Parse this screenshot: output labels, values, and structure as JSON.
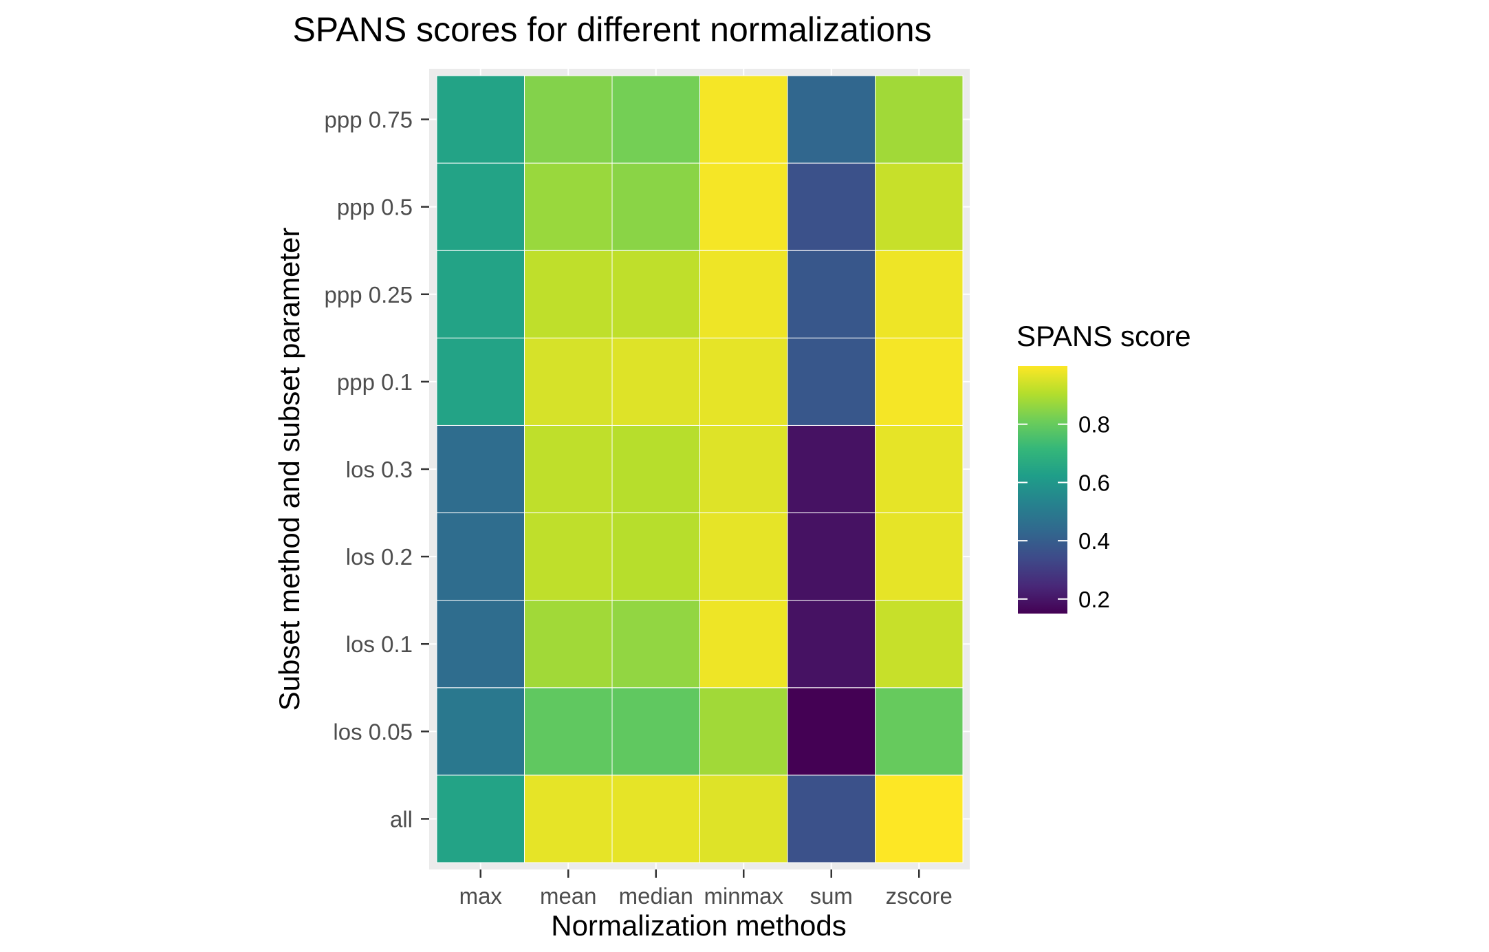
{
  "chart_data": {
    "type": "heatmap",
    "title": "SPANS scores for different normalizations",
    "xlabel": "Normalization methods",
    "ylabel": "Subset method and subset parameter",
    "x_categories": [
      "max",
      "mean",
      "median",
      "minmax",
      "sum",
      "zscore"
    ],
    "y_categories": [
      "all",
      "los 0.05",
      "los 0.1",
      "los 0.2",
      "los 0.3",
      "ppp 0.1",
      "ppp 0.25",
      "ppp 0.5",
      "ppp 0.75"
    ],
    "values": [
      [
        0.64,
        0.97,
        0.97,
        0.96,
        0.36,
        1.0
      ],
      [
        0.49,
        0.79,
        0.79,
        0.88,
        0.15,
        0.8
      ],
      [
        0.45,
        0.88,
        0.86,
        0.98,
        0.19,
        0.93
      ],
      [
        0.45,
        0.92,
        0.91,
        0.97,
        0.19,
        0.97
      ],
      [
        0.45,
        0.92,
        0.91,
        0.96,
        0.19,
        0.97
      ],
      [
        0.64,
        0.95,
        0.96,
        0.97,
        0.38,
        0.99
      ],
      [
        0.64,
        0.92,
        0.92,
        0.98,
        0.38,
        0.98
      ],
      [
        0.64,
        0.87,
        0.85,
        0.99,
        0.36,
        0.93
      ],
      [
        0.64,
        0.84,
        0.82,
        0.99,
        0.43,
        0.88
      ]
    ],
    "legend": {
      "title": "SPANS score",
      "ticks": [
        0.2,
        0.4,
        0.6,
        0.8
      ],
      "tick_labels": [
        "0.2",
        "0.4",
        "0.6",
        "0.8"
      ],
      "range": [
        0.15,
        1.0
      ],
      "placement": "right"
    },
    "colormap": "viridis",
    "grid": true
  }
}
